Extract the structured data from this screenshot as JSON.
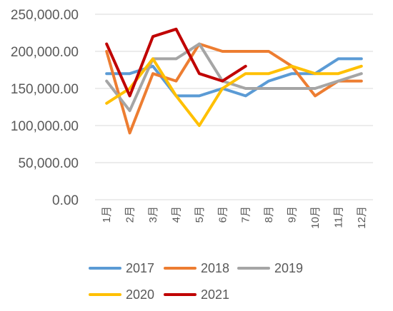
{
  "chart_data": {
    "type": "line",
    "title": "",
    "xlabel": "",
    "ylabel": "",
    "categories": [
      "1月",
      "2月",
      "3月",
      "4月",
      "5月",
      "6月",
      "7月",
      "8月",
      "9月",
      "10月",
      "11月",
      "12月"
    ],
    "y_ticks": [
      "0.00",
      "50,000.00",
      "100,000.00",
      "150,000.00",
      "200,000.00",
      "250,000.00"
    ],
    "ylim": [
      0,
      250000
    ],
    "grid": "horizontal",
    "legend_position": "bottom",
    "series": [
      {
        "name": "2017",
        "color": "#5B9BD5",
        "values": [
          170000,
          170000,
          180000,
          140000,
          140000,
          150000,
          140000,
          160000,
          170000,
          170000,
          190000,
          190000
        ]
      },
      {
        "name": "2018",
        "color": "#ED7D31",
        "values": [
          200000,
          90000,
          170000,
          160000,
          210000,
          200000,
          200000,
          200000,
          180000,
          140000,
          160000,
          160000
        ]
      },
      {
        "name": "2019",
        "color": "#A5A5A5",
        "values": [
          160000,
          120000,
          190000,
          190000,
          210000,
          160000,
          150000,
          150000,
          150000,
          150000,
          160000,
          170000
        ]
      },
      {
        "name": "2020",
        "color": "#FFC000",
        "values": [
          130000,
          150000,
          190000,
          140000,
          100000,
          150000,
          170000,
          170000,
          180000,
          170000,
          170000,
          180000
        ]
      },
      {
        "name": "2021",
        "color": "#C00000",
        "values": [
          210000,
          140000,
          220000,
          230000,
          170000,
          160000,
          180000,
          null,
          null,
          null,
          null,
          null
        ]
      }
    ]
  }
}
